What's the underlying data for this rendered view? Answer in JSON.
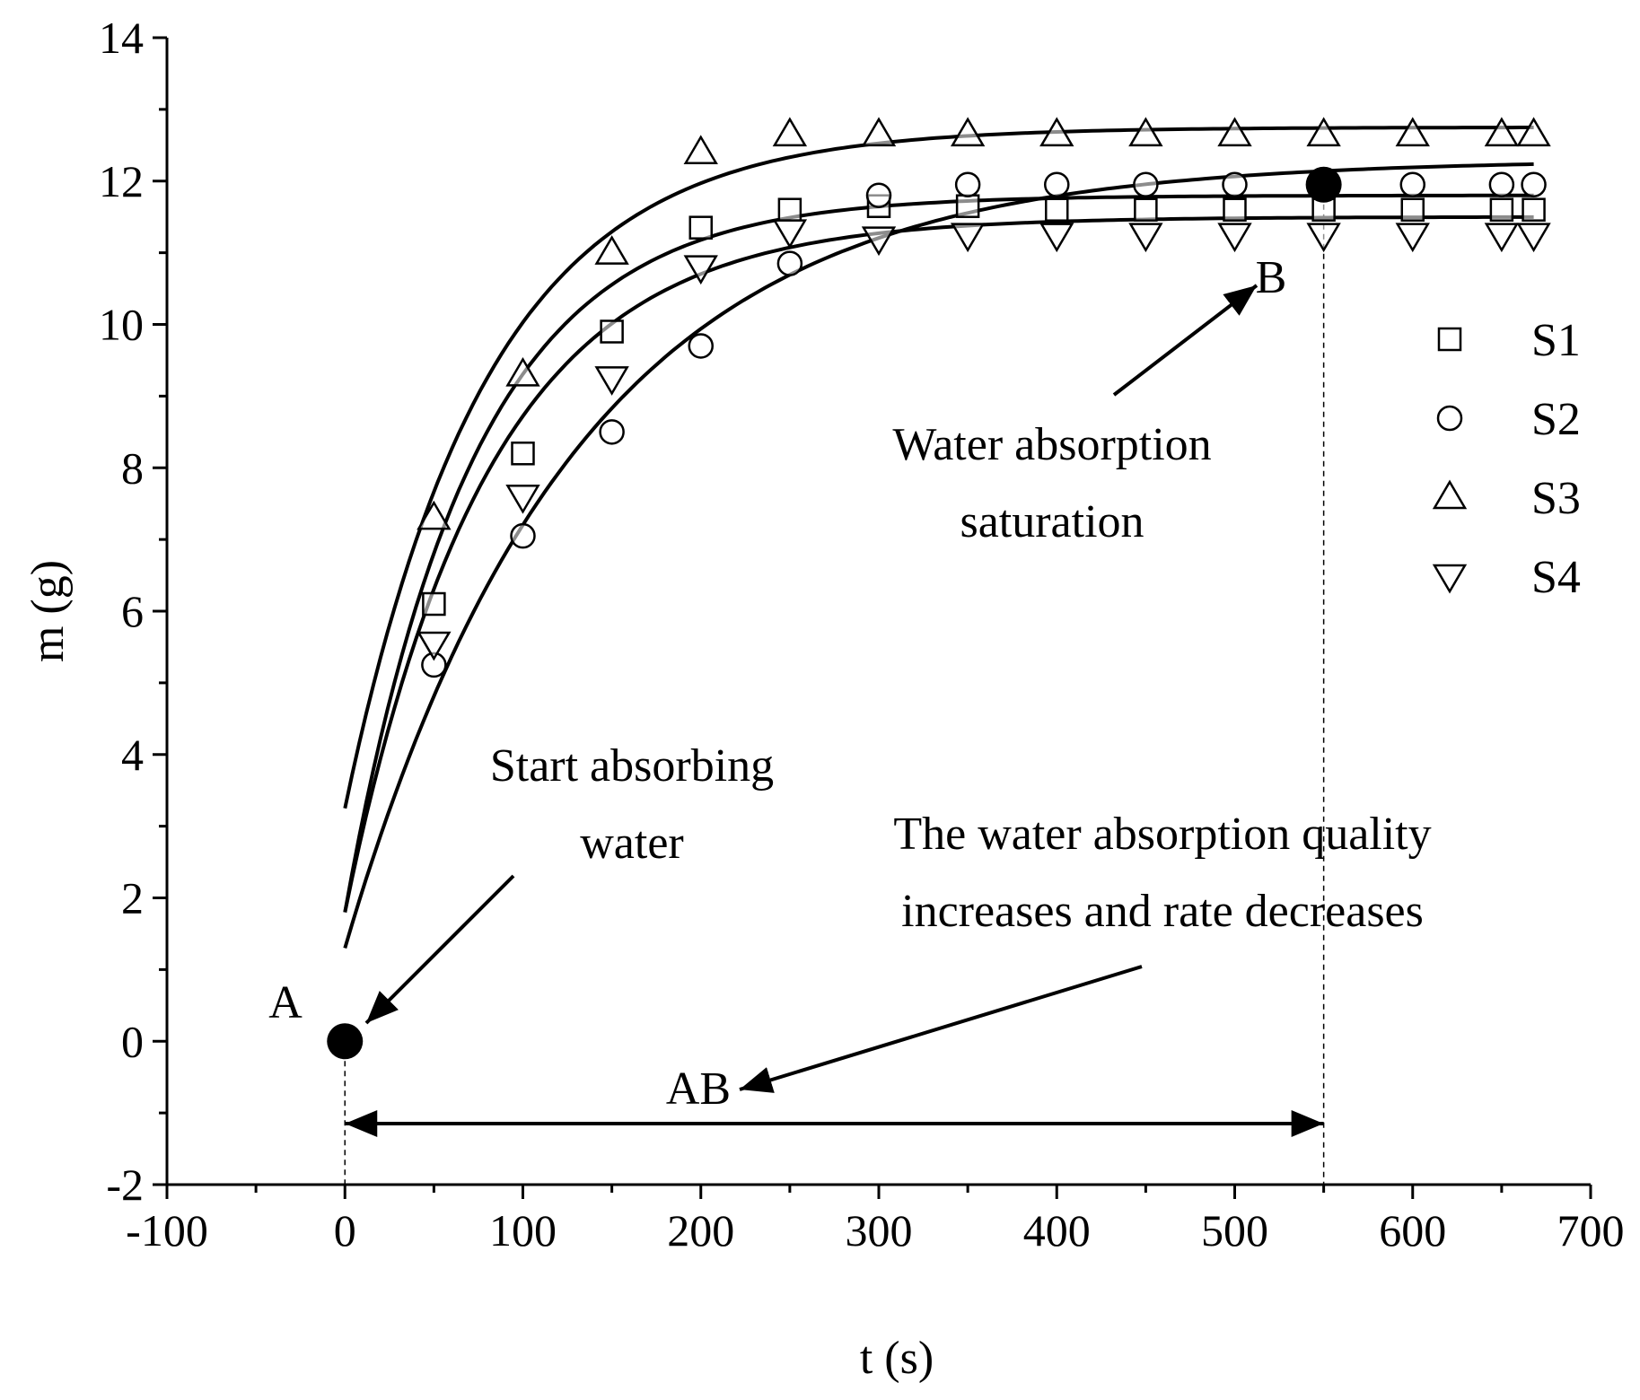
{
  "chart_data": {
    "type": "scatter",
    "title": "",
    "xlabel": "t (s)",
    "ylabel": "m (g)",
    "xlim": [
      -100,
      700
    ],
    "ylim": [
      -2,
      14
    ],
    "xticks": [
      -100,
      0,
      100,
      200,
      300,
      400,
      500,
      600,
      700
    ],
    "yticks": [
      -2,
      0,
      2,
      4,
      6,
      8,
      10,
      12,
      14
    ],
    "grid": false,
    "legend_position": "right",
    "series": [
      {
        "name": "S1",
        "marker": "square",
        "x": [
          50,
          100,
          150,
          200,
          250,
          300,
          350,
          400,
          450,
          500,
          550,
          600,
          650,
          668
        ],
        "y": [
          6.1,
          8.2,
          9.9,
          11.35,
          11.6,
          11.65,
          11.65,
          11.6,
          11.6,
          11.6,
          11.6,
          11.6,
          11.6,
          11.6
        ],
        "fit": {
          "a": 11.8,
          "b": 10.0,
          "tau": 72
        }
      },
      {
        "name": "S2",
        "marker": "circle",
        "x": [
          50,
          100,
          150,
          200,
          250,
          300,
          350,
          400,
          450,
          500,
          550,
          600,
          650,
          668
        ],
        "y": [
          5.25,
          7.05,
          8.5,
          9.7,
          10.85,
          11.8,
          11.95,
          11.95,
          11.95,
          11.95,
          11.95,
          11.95,
          11.95,
          11.95
        ],
        "fit": {
          "a": 12.3,
          "b": 11.0,
          "tau": 130
        }
      },
      {
        "name": "S3",
        "marker": "triangle-up",
        "x": [
          50,
          100,
          150,
          200,
          250,
          300,
          350,
          400,
          450,
          500,
          550,
          600,
          650,
          668
        ],
        "y": [
          7.3,
          9.3,
          11.0,
          12.4,
          12.65,
          12.65,
          12.65,
          12.65,
          12.65,
          12.65,
          12.65,
          12.65,
          12.65,
          12.65
        ],
        "fit": {
          "a": 12.75,
          "b": 9.5,
          "tau": 80
        }
      },
      {
        "name": "S4",
        "marker": "triangle-down",
        "x": [
          50,
          100,
          150,
          200,
          250,
          300,
          350,
          400,
          450,
          500,
          550,
          600,
          650,
          668
        ],
        "y": [
          5.55,
          7.6,
          9.25,
          10.8,
          11.3,
          11.2,
          11.25,
          11.25,
          11.25,
          11.25,
          11.25,
          11.25,
          11.25,
          11.25
        ],
        "fit": {
          "a": 11.5,
          "b": 9.7,
          "tau": 80
        }
      }
    ],
    "key_points": [
      {
        "label": "A",
        "x": 0,
        "y": 0
      },
      {
        "label": "B",
        "x": 550,
        "y": 11.95
      }
    ],
    "annotations": {
      "start_line1": "Start absorbing",
      "start_line2": "water",
      "saturation_line1": "Water absorption",
      "saturation_line2": "saturation",
      "quality_line1": "The water absorption quality",
      "quality_line2": "increases and rate decreases",
      "range_label": "AB"
    }
  },
  "colors": {
    "ink": "#000000",
    "background": "#ffffff"
  }
}
